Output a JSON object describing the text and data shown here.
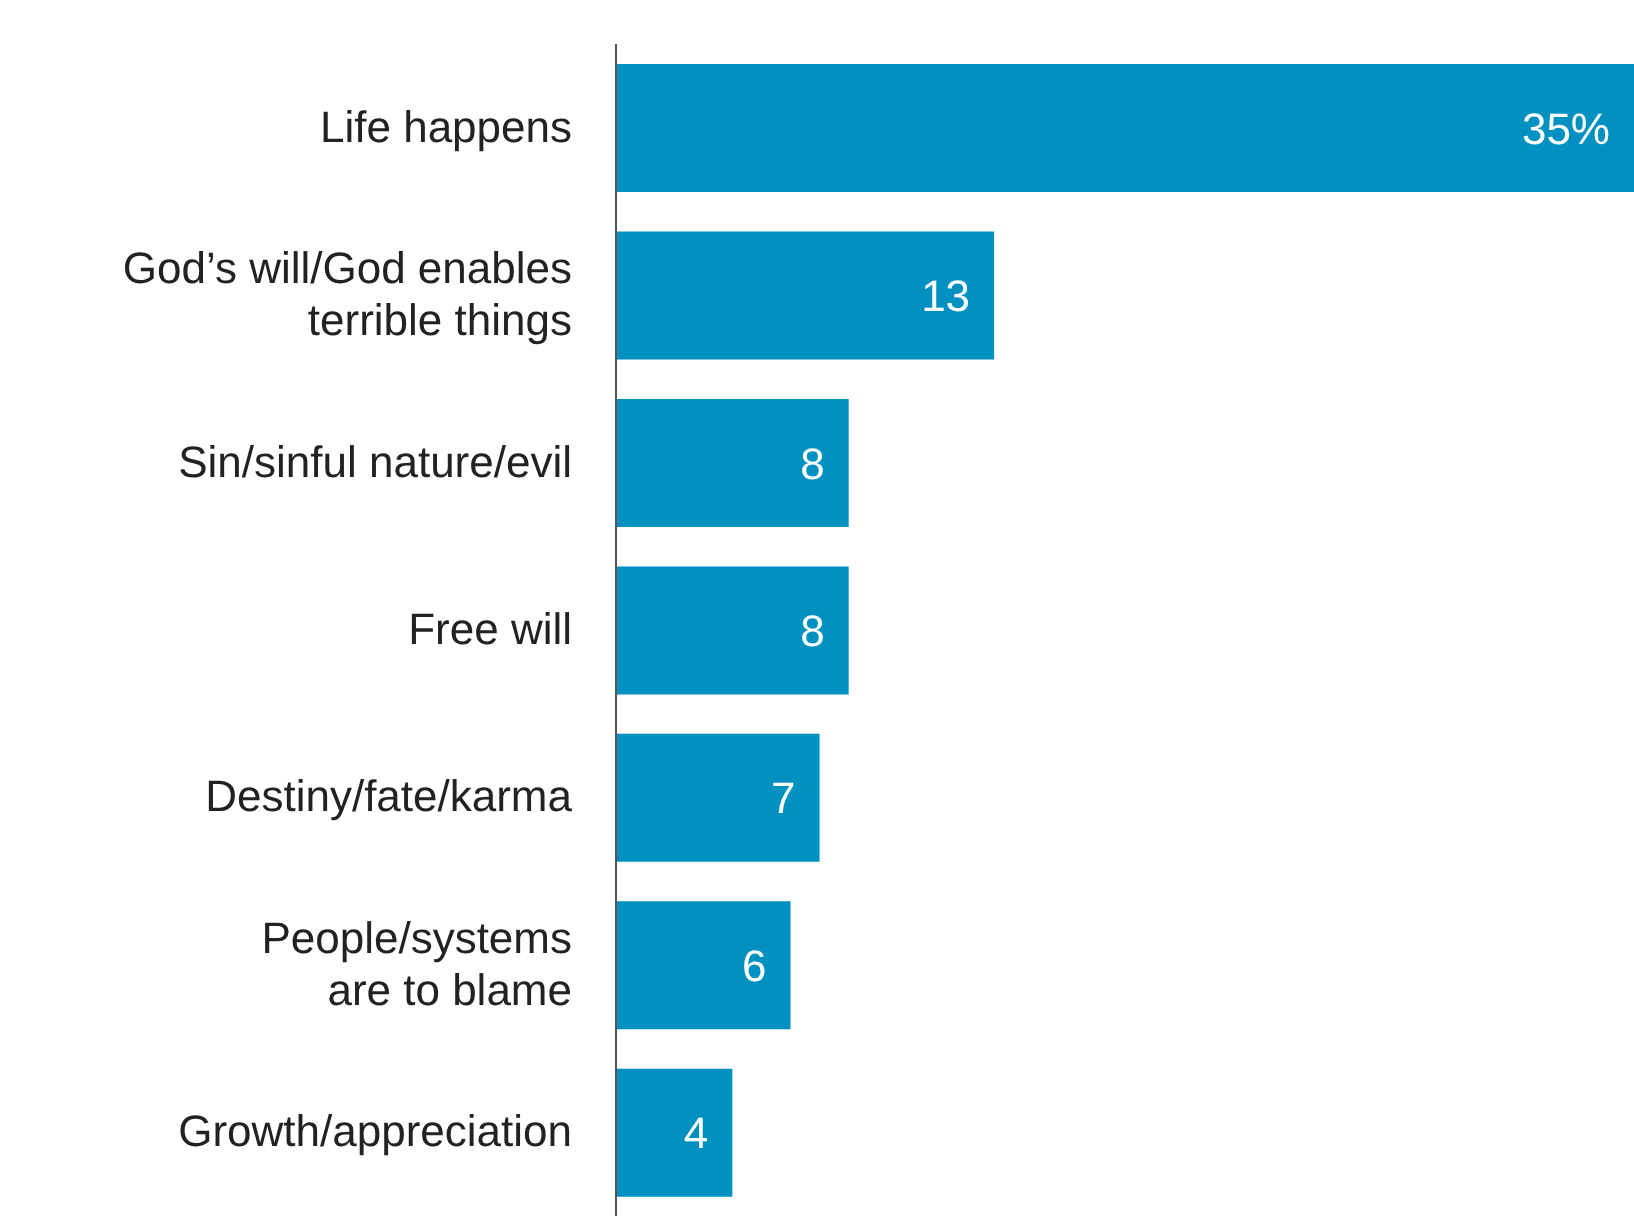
{
  "chart_data": {
    "type": "bar",
    "orientation": "horizontal",
    "categories": [
      "Life happens",
      "God’s will/God enables\nterrible things",
      "Sin/sinful nature/evil",
      "Free will",
      "Destiny/fate/karma",
      "People/systems\nare to blame",
      "Growth/appreciation"
    ],
    "values": [
      35,
      13,
      8,
      8,
      7,
      6,
      4
    ],
    "value_labels": [
      "35%",
      "13",
      "8",
      "8",
      "7",
      "6",
      "4"
    ],
    "color": "#0091c1"
  }
}
